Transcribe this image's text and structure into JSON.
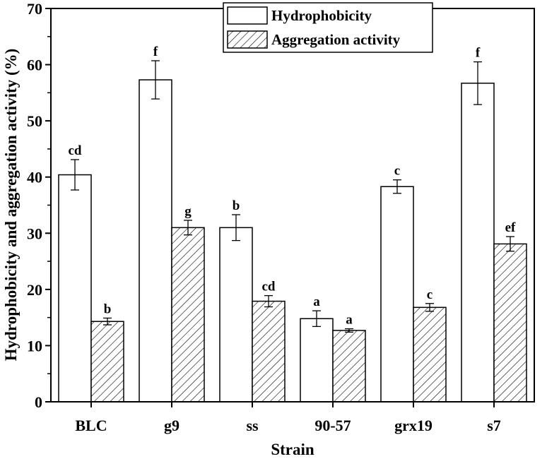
{
  "chart_data": {
    "type": "bar",
    "title": "",
    "xlabel": "Strain",
    "ylabel": "Hydrophobicity and aggregation activity (%)",
    "ylim": [
      0,
      70
    ],
    "yticks": [
      0,
      10,
      20,
      30,
      40,
      50,
      60,
      70
    ],
    "categories": [
      "BLC",
      "g9",
      "ss",
      "90-57",
      "grx19",
      "s7"
    ],
    "legend_position": "top-right",
    "series": [
      {
        "name": "Hydrophobicity",
        "fill": "open",
        "values": [
          40.4,
          57.3,
          31.0,
          14.8,
          38.3,
          56.7
        ],
        "errors": [
          2.7,
          3.4,
          2.3,
          1.4,
          1.2,
          3.8
        ],
        "significance": [
          "cd",
          "f",
          "b",
          "a",
          "c",
          "f"
        ]
      },
      {
        "name": "Aggregation activity",
        "fill": "hatched",
        "values": [
          14.3,
          31.0,
          17.9,
          12.7,
          16.8,
          28.1
        ],
        "errors": [
          0.6,
          1.3,
          1.0,
          0.3,
          0.7,
          1.3
        ],
        "significance": [
          "b",
          "g",
          "cd",
          "a",
          "c",
          "ef"
        ]
      }
    ]
  },
  "colors": {
    "axis": "#000000",
    "bar_fill": "#ffffff",
    "hatch": "#000000"
  }
}
